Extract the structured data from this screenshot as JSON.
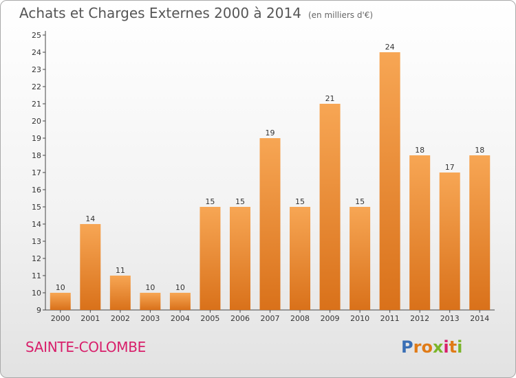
{
  "title": "Achats et Charges Externes 2000 à 2014",
  "unit": "(en milliers d'€)",
  "commune": "SAINTE-COLOMBE",
  "logo": {
    "letters": [
      "P",
      "r",
      "o",
      "x",
      "i",
      "t",
      "i"
    ],
    "colors": [
      "#3a6fb5",
      "#e07b17",
      "#e07b17",
      "#7bb52a",
      "#d81e6a",
      "#e07b17",
      "#7bb52a"
    ]
  },
  "colors": {
    "bar_top": "#f7a654",
    "bar_bottom": "#d9711a",
    "axis": "#444444",
    "grid": "#cccccc"
  },
  "chart_data": {
    "type": "bar",
    "categories": [
      "2000",
      "2001",
      "2002",
      "2003",
      "2004",
      "2005",
      "2006",
      "2007",
      "2008",
      "2009",
      "2010",
      "2011",
      "2012",
      "2013",
      "2014"
    ],
    "values": [
      10,
      14,
      11,
      10,
      10,
      15,
      15,
      19,
      15,
      21,
      15,
      24,
      18,
      17,
      18
    ],
    "title": "Achats et Charges Externes 2000 à 2014",
    "ylim": [
      9,
      25
    ],
    "yticks": [
      9,
      10,
      11,
      12,
      13,
      14,
      15,
      16,
      17,
      18,
      19,
      20,
      21,
      22,
      23,
      24,
      25
    ],
    "data_labels": true,
    "legend": "none"
  }
}
